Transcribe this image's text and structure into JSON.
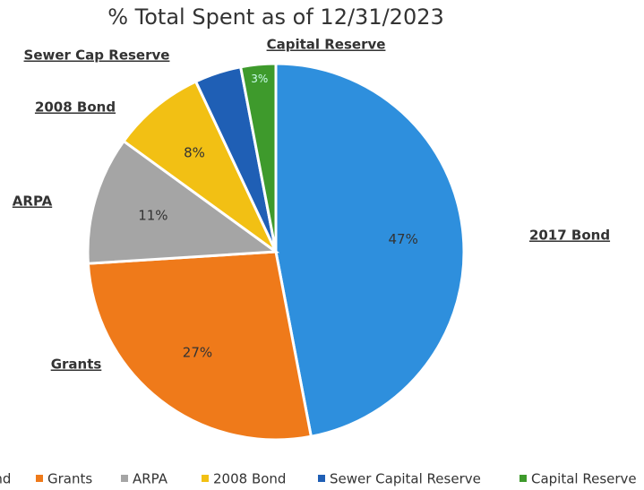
{
  "chart_data": {
    "type": "pie",
    "title": "% Total Spent as of 12/31/2023",
    "categories": [
      "2017 Bond",
      "Grants",
      "ARPA",
      "2008 Bond",
      "Sewer Capital Reserve",
      "Capital Reserve"
    ],
    "values": [
      47,
      27,
      11,
      8,
      4,
      3
    ],
    "value_labels": [
      "47%",
      "27%",
      "11%",
      "8%",
      null,
      "3%"
    ],
    "slice_labels": [
      "2017 Bond",
      "Grants",
      "ARPA",
      "2008 Bond",
      "Sewer Cap Reserve",
      "Capital Reserve"
    ],
    "colors": [
      "#2e8fdd",
      "#ef7a1a",
      "#a5a5a5",
      "#f2c014",
      "#1f5fb5",
      "#3e9a2c"
    ],
    "legend": "bottom"
  }
}
